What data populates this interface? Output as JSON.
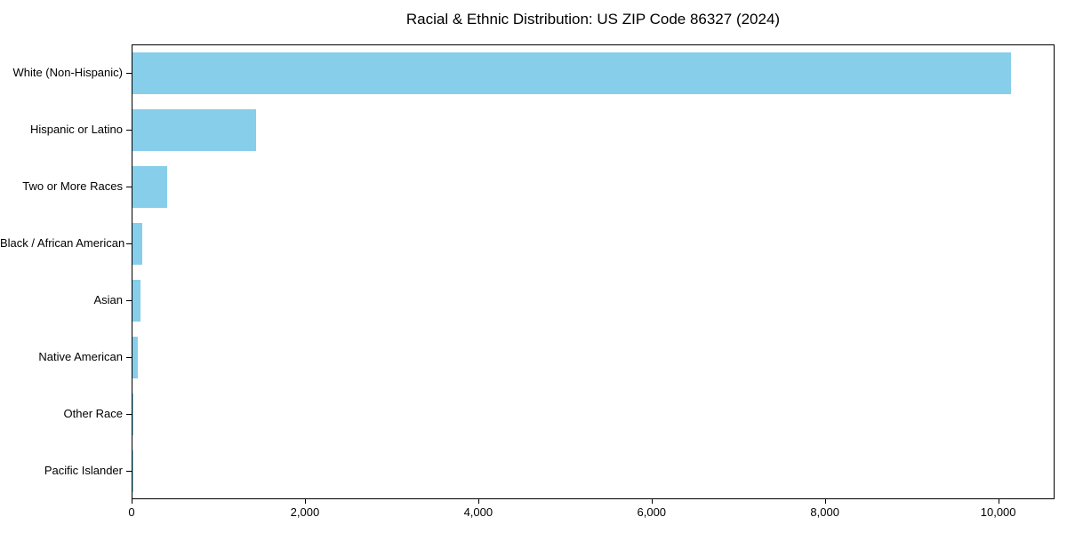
{
  "chart_data": {
    "type": "bar",
    "orientation": "horizontal",
    "title": "Racial & Ethnic Distribution: US ZIP Code 86327 (2024)",
    "categories": [
      "White (Non-Hispanic)",
      "Hispanic or Latino",
      "Two or More Races",
      "Black / African American",
      "Asian",
      "Native American",
      "Other Race",
      "Pacific Islander"
    ],
    "values": [
      10140,
      1425,
      400,
      115,
      90,
      60,
      12,
      5
    ],
    "xlabel": "",
    "ylabel": "",
    "xlim": [
      0,
      10650
    ],
    "xticks": [
      0,
      2000,
      4000,
      6000,
      8000,
      10000
    ],
    "xtick_labels": [
      "0",
      "2,000",
      "4,000",
      "6,000",
      "8,000",
      "10,000"
    ],
    "bar_color": "#87CEEB",
    "grid": false,
    "legend": "none",
    "background_color": "#ffffff",
    "spine_color": "#000000"
  }
}
